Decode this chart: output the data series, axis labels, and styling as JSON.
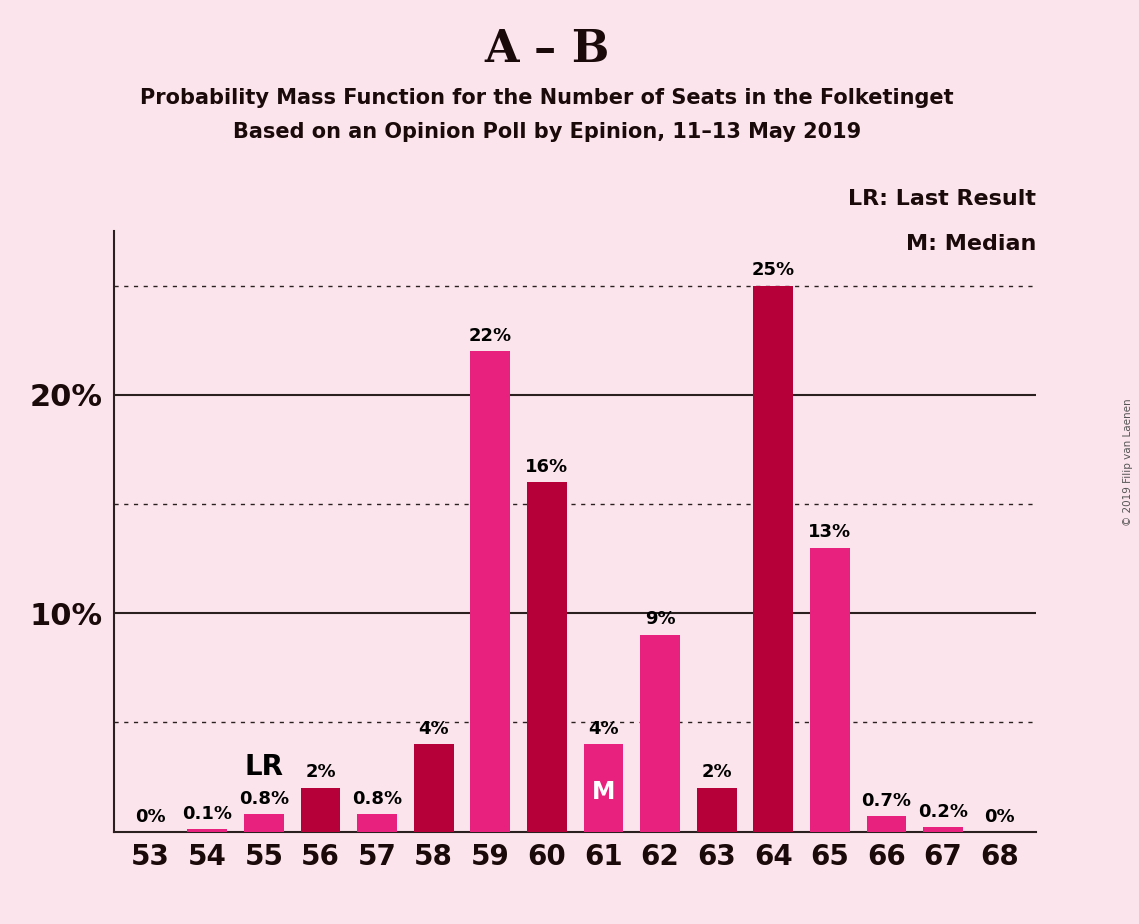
{
  "title_main": "A – B",
  "title_sub1": "Probability Mass Function for the Number of Seats in the Folketinget",
  "title_sub2": "Based on an Opinion Poll by Epinion, 11–13 May 2019",
  "background_color": "#fce4ec",
  "categories": [
    53,
    54,
    55,
    56,
    57,
    58,
    59,
    60,
    61,
    62,
    63,
    64,
    65,
    66,
    67,
    68
  ],
  "values": [
    0.0,
    0.1,
    0.8,
    2.0,
    0.8,
    4.0,
    22.0,
    16.0,
    4.0,
    9.0,
    2.0,
    25.0,
    13.0,
    0.7,
    0.2,
    0.0
  ],
  "labels": [
    "0%",
    "0.1%",
    "0.8%",
    "2%",
    "0.8%",
    "4%",
    "22%",
    "16%",
    "4%",
    "9%",
    "2%",
    "25%",
    "13%",
    "0.7%",
    "0.2%",
    "0%"
  ],
  "bar_colors": [
    "#e8217f",
    "#e8217f",
    "#e8217f",
    "#b5003a",
    "#e8217f",
    "#b5003a",
    "#e8217f",
    "#b5003a",
    "#e8217f",
    "#e8217f",
    "#b5003a",
    "#b5003a",
    "#e8217f",
    "#e8217f",
    "#e8217f",
    "#e8217f"
  ],
  "lr_seat": 55,
  "median_seat": 61,
  "legend_lr": "LR: Last Result",
  "legend_m": "M: Median",
  "copyright": "© 2019 Filip van Laenen",
  "grid_color": "#2a2020",
  "dotted_levels": [
    5.0,
    15.0,
    25.0
  ],
  "solid_levels": [
    10.0,
    20.0
  ],
  "ylim_max": 27.5,
  "bar_width": 0.7
}
